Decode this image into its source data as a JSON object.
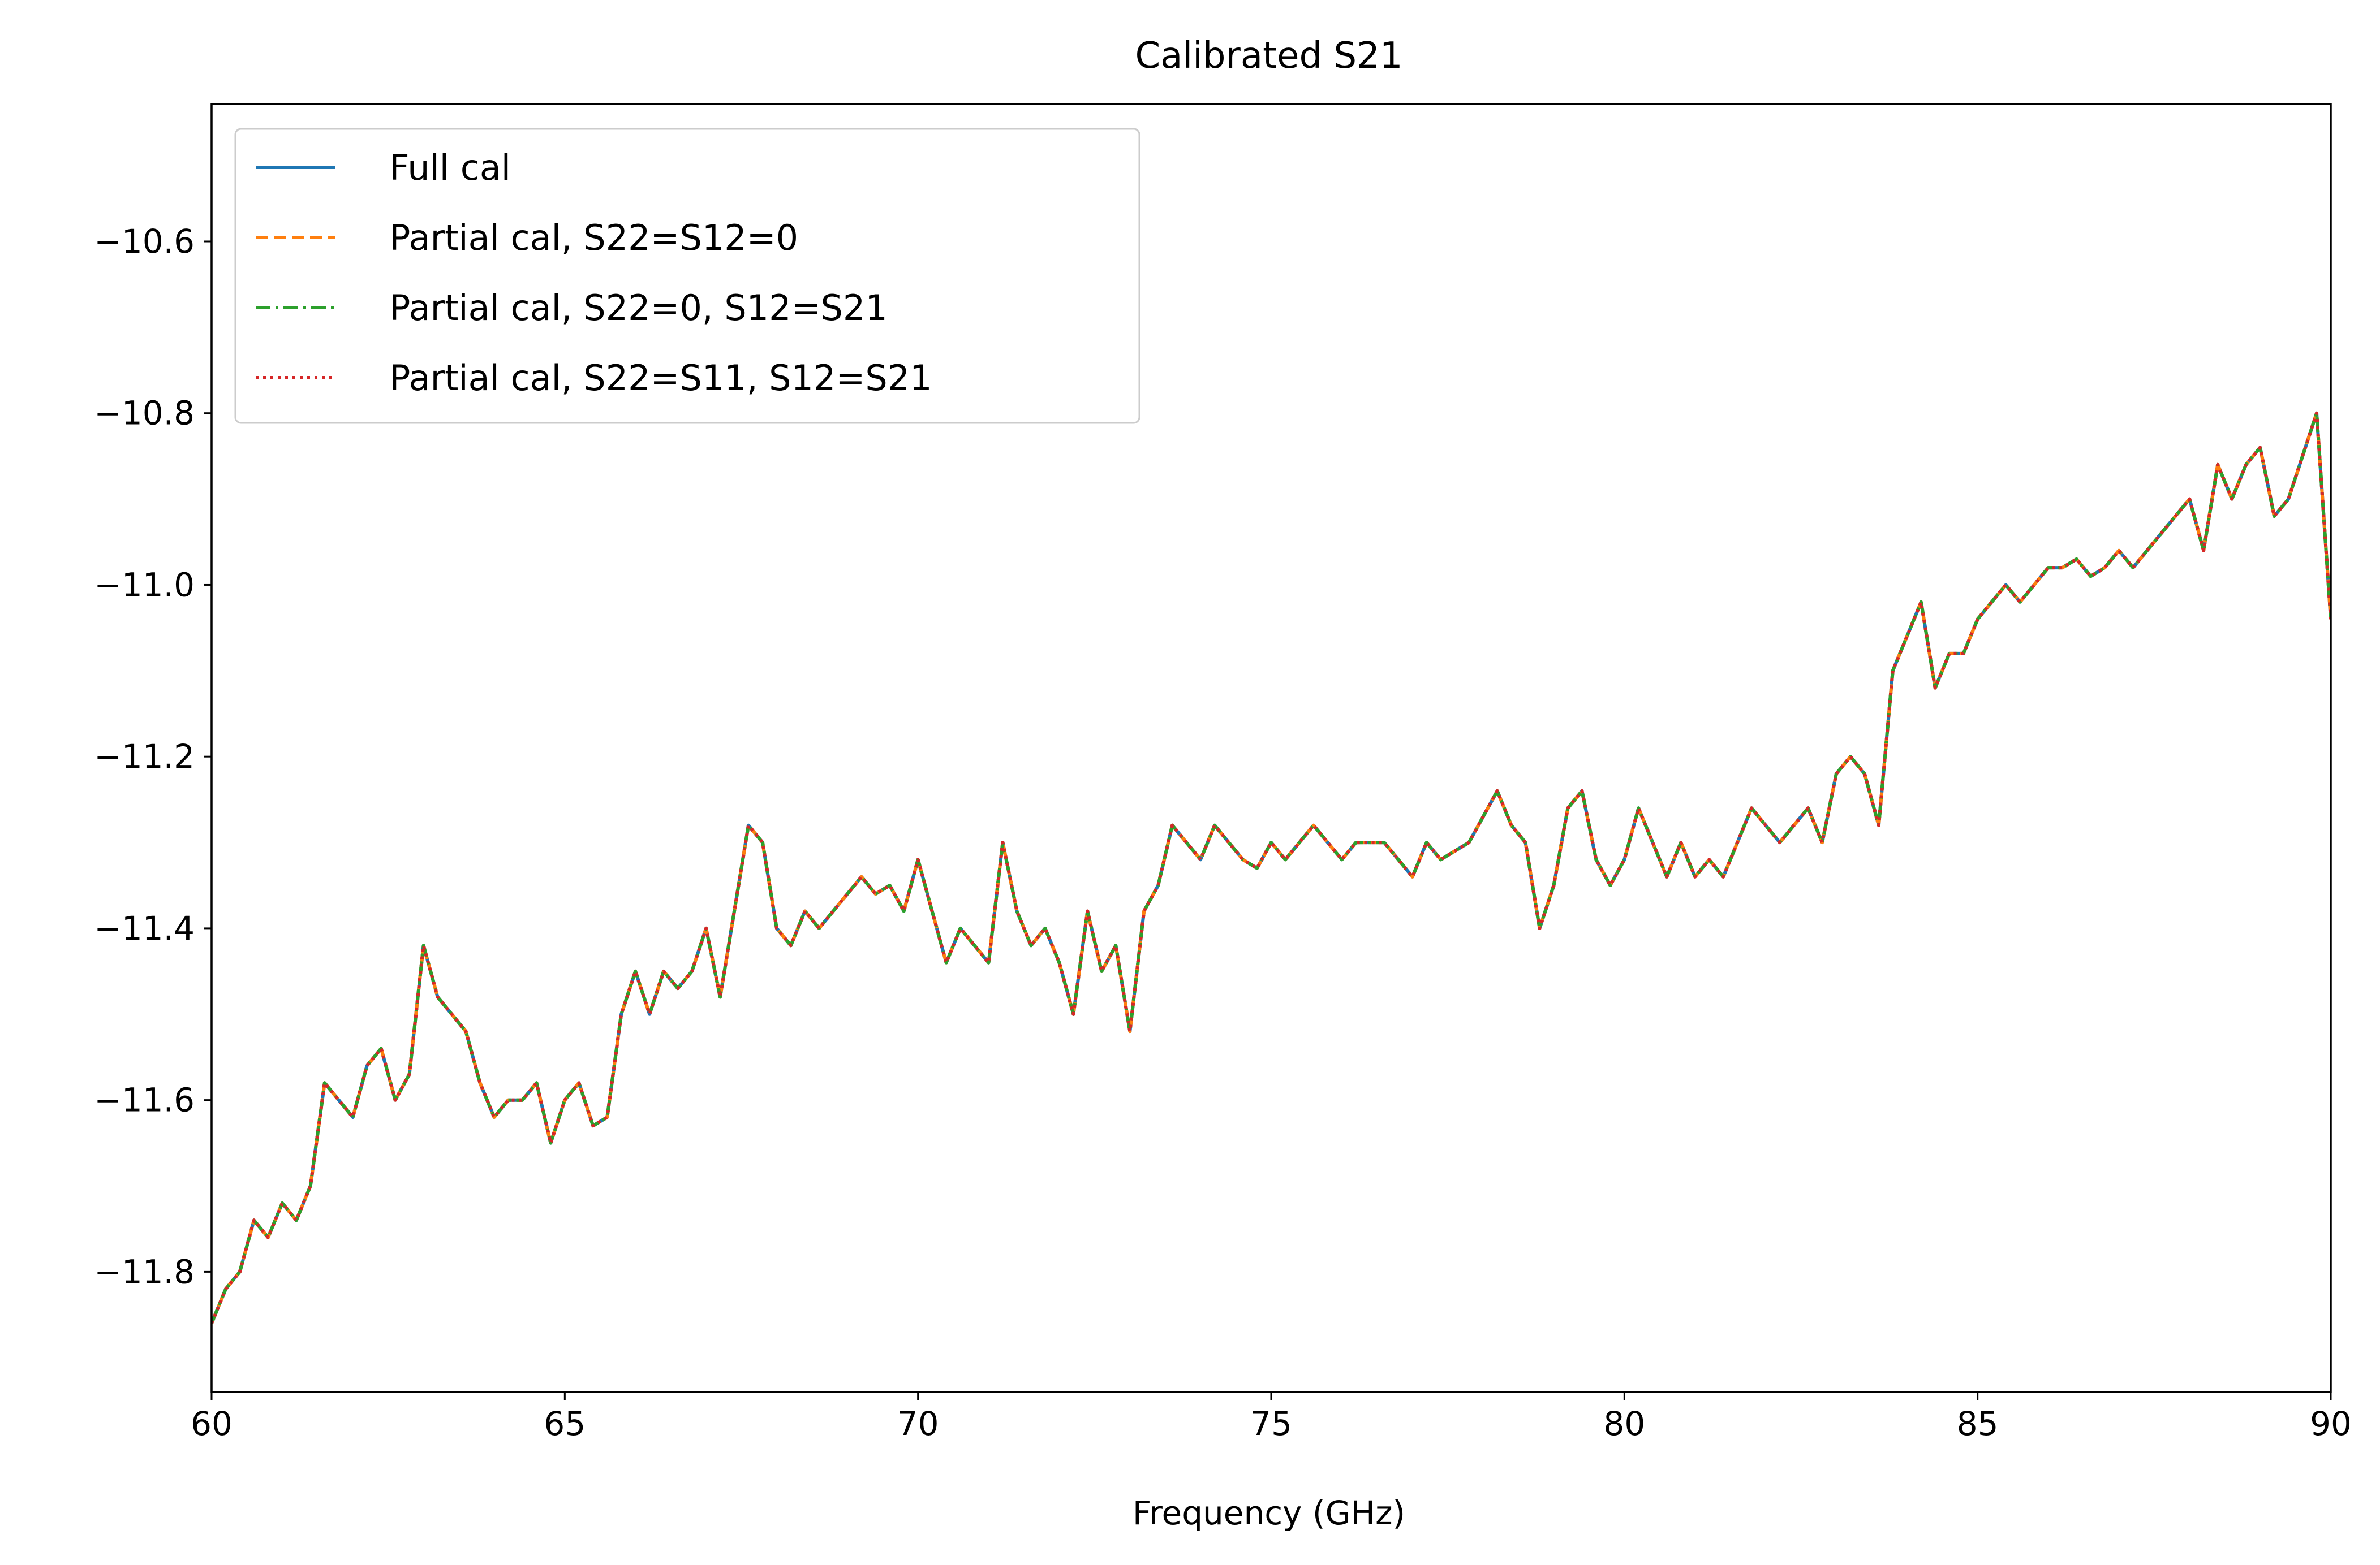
{
  "chart_data": {
    "type": "line",
    "title": "Calibrated S21",
    "xlabel": "Frequency (GHz)",
    "ylabel": "",
    "xlim": [
      60,
      90
    ],
    "ylim": [
      -11.94,
      -10.44
    ],
    "xticks": [
      60,
      65,
      70,
      75,
      80,
      85,
      90
    ],
    "yticks": [
      -11.8,
      -11.6,
      -11.4,
      -11.2,
      -11.0,
      -10.8,
      -10.6
    ],
    "xtick_labels": [
      "60",
      "65",
      "70",
      "75",
      "80",
      "85",
      "90"
    ],
    "ytick_labels": [
      "−11.8",
      "−11.6",
      "−11.4",
      "−11.2",
      "−11.0",
      "−10.8",
      "−10.6"
    ],
    "grid": false,
    "legend_position": "top-left",
    "series": [
      {
        "name": "Full cal",
        "color": "#1f77b4",
        "style": "solid"
      },
      {
        "name": "Partial cal, S22=S12=0",
        "color": "#ff7f0e",
        "style": "dashed"
      },
      {
        "name": "Partial cal, S22=0, S12=S21",
        "color": "#2ca02c",
        "style": "dashdot"
      },
      {
        "name": "Partial cal, S22=S11, S12=S21",
        "color": "#d62728",
        "style": "dotted"
      }
    ],
    "x": [
      60.0,
      60.2,
      60.4,
      60.6,
      60.8,
      61.0,
      61.2,
      61.4,
      61.6,
      61.8,
      62.0,
      62.2,
      62.4,
      62.6,
      62.8,
      63.0,
      63.2,
      63.4,
      63.6,
      63.8,
      64.0,
      64.2,
      64.4,
      64.6,
      64.8,
      65.0,
      65.2,
      65.4,
      65.6,
      65.8,
      66.0,
      66.2,
      66.4,
      66.6,
      66.8,
      67.0,
      67.2,
      67.4,
      67.6,
      67.8,
      68.0,
      68.2,
      68.4,
      68.6,
      68.8,
      69.0,
      69.2,
      69.4,
      69.6,
      69.8,
      70.0,
      70.2,
      70.4,
      70.6,
      70.8,
      71.0,
      71.2,
      71.4,
      71.6,
      71.8,
      72.0,
      72.2,
      72.4,
      72.6,
      72.8,
      73.0,
      73.2,
      73.4,
      73.6,
      73.8,
      74.0,
      74.2,
      74.4,
      74.6,
      74.8,
      75.0,
      75.2,
      75.4,
      75.6,
      75.8,
      76.0,
      76.2,
      76.4,
      76.6,
      76.8,
      77.0,
      77.2,
      77.4,
      77.6,
      77.8,
      78.0,
      78.2,
      78.4,
      78.6,
      78.8,
      79.0,
      79.2,
      79.4,
      79.6,
      79.8,
      80.0,
      80.2,
      80.4,
      80.6,
      80.8,
      81.0,
      81.2,
      81.4,
      81.6,
      81.8,
      82.0,
      82.2,
      82.4,
      82.6,
      82.8,
      83.0,
      83.2,
      83.4,
      83.6,
      83.8,
      84.0,
      84.2,
      84.4,
      84.6,
      84.8,
      85.0,
      85.2,
      85.4,
      85.6,
      85.8,
      86.0,
      86.2,
      86.4,
      86.6,
      86.8,
      87.0,
      87.2,
      87.4,
      87.6,
      87.8,
      88.0,
      88.2,
      88.4,
      88.6,
      88.8,
      89.0,
      89.2,
      89.4,
      89.6,
      89.8,
      90.0
    ],
    "values": [
      -11.86,
      -11.82,
      -11.8,
      -11.74,
      -11.76,
      -11.72,
      -11.74,
      -11.7,
      -11.58,
      -11.6,
      -11.62,
      -11.56,
      -11.54,
      -11.6,
      -11.57,
      -11.42,
      -11.48,
      -11.5,
      -11.52,
      -11.58,
      -11.62,
      -11.6,
      -11.6,
      -11.58,
      -11.65,
      -11.6,
      -11.58,
      -11.63,
      -11.62,
      -11.5,
      -11.45,
      -11.5,
      -11.45,
      -11.47,
      -11.45,
      -11.4,
      -11.48,
      -11.38,
      -11.28,
      -11.3,
      -11.4,
      -11.42,
      -11.38,
      -11.4,
      -11.38,
      -11.36,
      -11.34,
      -11.36,
      -11.35,
      -11.38,
      -11.32,
      -11.38,
      -11.44,
      -11.4,
      -11.42,
      -11.44,
      -11.3,
      -11.38,
      -11.42,
      -11.4,
      -11.44,
      -11.5,
      -11.38,
      -11.45,
      -11.42,
      -11.52,
      -11.38,
      -11.35,
      -11.28,
      -11.3,
      -11.32,
      -11.28,
      -11.3,
      -11.32,
      -11.33,
      -11.3,
      -11.32,
      -11.3,
      -11.28,
      -11.3,
      -11.32,
      -11.3,
      -11.3,
      -11.3,
      -11.32,
      -11.34,
      -11.3,
      -11.32,
      -11.31,
      -11.3,
      -11.27,
      -11.24,
      -11.28,
      -11.3,
      -11.4,
      -11.35,
      -11.26,
      -11.24,
      -11.32,
      -11.35,
      -11.32,
      -11.26,
      -11.3,
      -11.34,
      -11.3,
      -11.34,
      -11.32,
      -11.34,
      -11.3,
      -11.26,
      -11.28,
      -11.3,
      -11.28,
      -11.26,
      -11.3,
      -11.22,
      -11.2,
      -11.22,
      -11.28,
      -11.1,
      -11.06,
      -11.02,
      -11.12,
      -11.08,
      -11.08,
      -11.04,
      -11.02,
      -11.0,
      -11.02,
      -11.0,
      -10.98,
      -10.98,
      -10.97,
      -10.99,
      -10.98,
      -10.96,
      -10.98,
      -10.96,
      -10.94,
      -10.92,
      -10.9,
      -10.96,
      -10.86,
      -10.9,
      -10.86,
      -10.84,
      -10.92,
      -10.9,
      -10.85,
      -10.8,
      -11.04
    ]
  }
}
